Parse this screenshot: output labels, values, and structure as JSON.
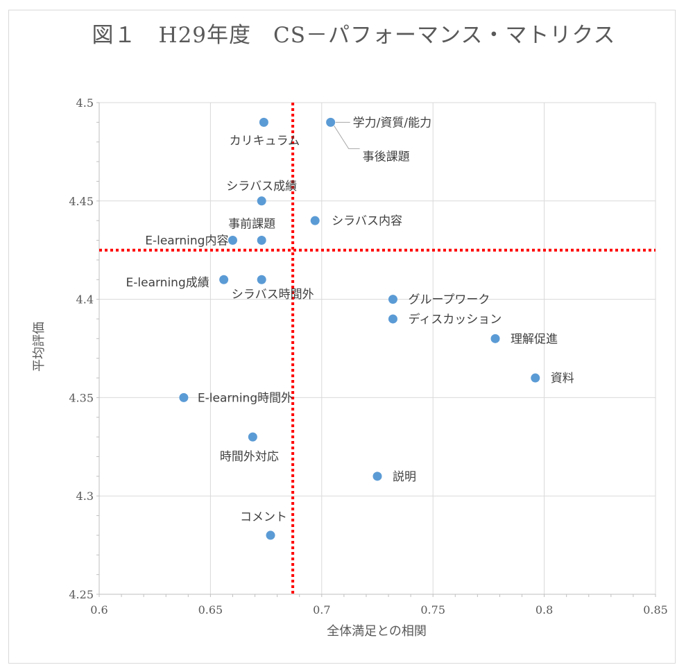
{
  "chart_data": {
    "type": "scatter",
    "title": "図１　H29年度　CS－パフォーマンス・マトリクス",
    "xlabel": "全体満足との相関",
    "ylabel": "平均評価",
    "xlim": [
      0.6,
      0.85
    ],
    "ylim": [
      4.25,
      4.5
    ],
    "x_ticks": [
      "0.6",
      "0.65",
      "0.7",
      "0.75",
      "0.8",
      "0.85"
    ],
    "y_ticks": [
      "4.25",
      "4.3",
      "4.35",
      "4.4",
      "4.45",
      "4.5"
    ],
    "grid": true,
    "marker_color": "#5b9bd5",
    "reference_line_color": "#ff0000",
    "reference_lines": {
      "x": 0.687,
      "y": 4.425
    },
    "points": [
      {
        "label": "カリキュラム",
        "x": 0.674,
        "y": 4.49
      },
      {
        "label": "学力/資質/能力",
        "x": 0.704,
        "y": 4.49
      },
      {
        "label": "事後課題",
        "x": 0.704,
        "y": 4.49
      },
      {
        "label": "シラバス成績",
        "x": 0.673,
        "y": 4.45
      },
      {
        "label": "シラバス内容",
        "x": 0.697,
        "y": 4.44
      },
      {
        "label": "事前課題",
        "x": 0.673,
        "y": 4.43
      },
      {
        "label": "E-learning内容",
        "x": 0.66,
        "y": 4.43
      },
      {
        "label": "E-learning成績",
        "x": 0.656,
        "y": 4.41
      },
      {
        "label": "シラバス時間外",
        "x": 0.673,
        "y": 4.41
      },
      {
        "label": "グループワーク",
        "x": 0.732,
        "y": 4.4
      },
      {
        "label": "ディスカッション",
        "x": 0.732,
        "y": 4.39
      },
      {
        "label": "理解促進",
        "x": 0.778,
        "y": 4.38
      },
      {
        "label": "資料",
        "x": 0.796,
        "y": 4.36
      },
      {
        "label": "E-learning時間外",
        "x": 0.638,
        "y": 4.35
      },
      {
        "label": "時間外対応",
        "x": 0.669,
        "y": 4.33
      },
      {
        "label": "説明",
        "x": 0.725,
        "y": 4.31
      },
      {
        "label": "コメント",
        "x": 0.677,
        "y": 4.28
      }
    ]
  }
}
